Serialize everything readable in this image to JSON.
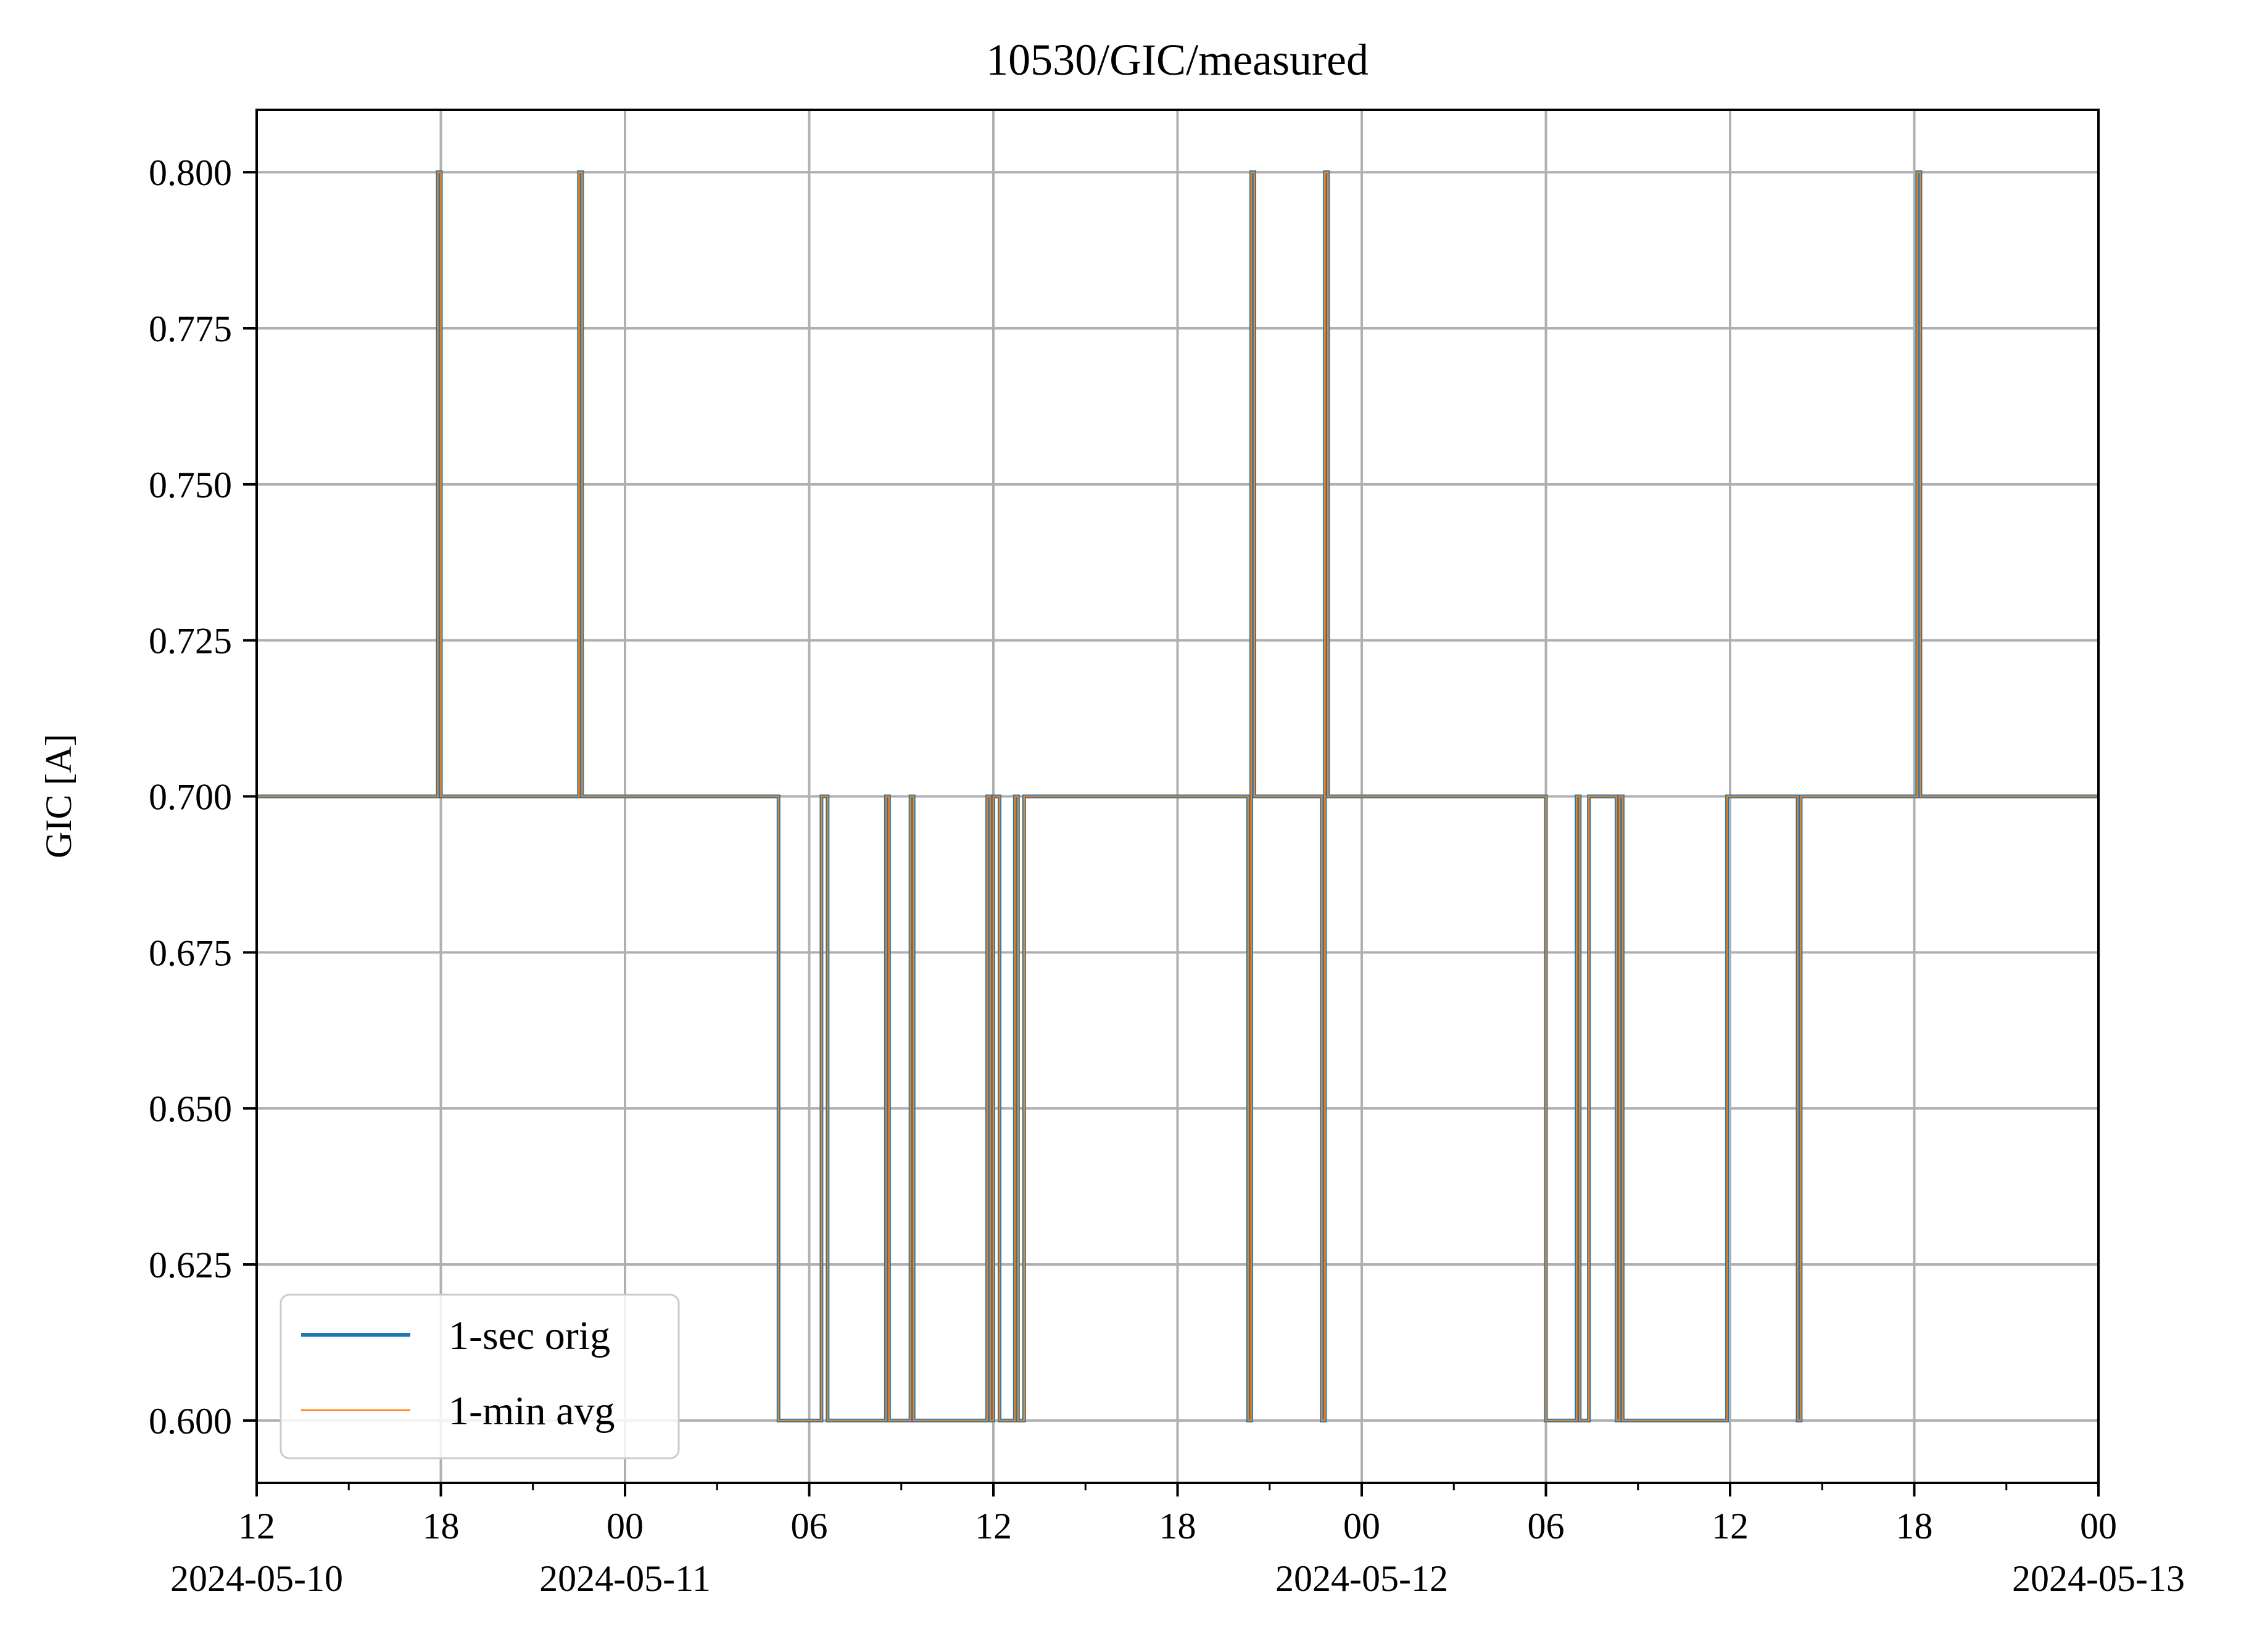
{
  "chart_data": {
    "type": "line",
    "title": "10530/GIC/measured",
    "xlabel": "",
    "ylabel": "GIC [A]",
    "x_axis": {
      "kind": "datetime",
      "range": [
        "2024-05-10 12:00",
        "2024-05-13 00:00"
      ],
      "major_ticks": [
        {
          "time": "2024-05-10 12:00",
          "label": "12",
          "date_label": "2024-05-10"
        },
        {
          "time": "2024-05-10 18:00",
          "label": "18",
          "date_label": ""
        },
        {
          "time": "2024-05-11 00:00",
          "label": "00",
          "date_label": "2024-05-11"
        },
        {
          "time": "2024-05-11 06:00",
          "label": "06",
          "date_label": ""
        },
        {
          "time": "2024-05-11 12:00",
          "label": "12",
          "date_label": ""
        },
        {
          "time": "2024-05-11 18:00",
          "label": "18",
          "date_label": ""
        },
        {
          "time": "2024-05-12 00:00",
          "label": "00",
          "date_label": "2024-05-12"
        },
        {
          "time": "2024-05-12 06:00",
          "label": "06",
          "date_label": ""
        },
        {
          "time": "2024-05-12 12:00",
          "label": "12",
          "date_label": ""
        },
        {
          "time": "2024-05-12 18:00",
          "label": "18",
          "date_label": ""
        },
        {
          "time": "2024-05-13 00:00",
          "label": "00",
          "date_label": "2024-05-13"
        }
      ],
      "minor_tick_hours": 3
    },
    "y_axis": {
      "range": [
        0.59,
        0.81
      ],
      "ticks": [
        0.6,
        0.625,
        0.65,
        0.675,
        0.7,
        0.725,
        0.75,
        0.775,
        0.8
      ],
      "tick_labels": [
        "0.600",
        "0.625",
        "0.650",
        "0.675",
        "0.700",
        "0.725",
        "0.750",
        "0.775",
        "0.800"
      ]
    },
    "grid": true,
    "legend": {
      "position": "lower-left"
    },
    "series": [
      {
        "name": "1-sec orig",
        "color": "#1f77b4",
        "line_width": "thick",
        "step": true,
        "points": [
          [
            "2024-05-10 12:00",
            0.7
          ],
          [
            "2024-05-10 17:54",
            0.8
          ],
          [
            "2024-05-10 18:00",
            0.7
          ],
          [
            "2024-05-10 22:30",
            0.8
          ],
          [
            "2024-05-10 22:36",
            0.7
          ],
          [
            "2024-05-11 05:00",
            0.6
          ],
          [
            "2024-05-11 06:24",
            0.7
          ],
          [
            "2024-05-11 06:36",
            0.6
          ],
          [
            "2024-05-11 08:30",
            0.7
          ],
          [
            "2024-05-11 08:36",
            0.6
          ],
          [
            "2024-05-11 09:18",
            0.7
          ],
          [
            "2024-05-11 09:24",
            0.6
          ],
          [
            "2024-05-11 11:48",
            0.7
          ],
          [
            "2024-05-11 11:54",
            0.6
          ],
          [
            "2024-05-11 12:00",
            0.7
          ],
          [
            "2024-05-11 12:12",
            0.6
          ],
          [
            "2024-05-11 12:42",
            0.7
          ],
          [
            "2024-05-11 12:48",
            0.6
          ],
          [
            "2024-05-11 13:00",
            0.7
          ],
          [
            "2024-05-11 20:18",
            0.6
          ],
          [
            "2024-05-11 20:24",
            0.8
          ],
          [
            "2024-05-11 20:30",
            0.7
          ],
          [
            "2024-05-11 22:42",
            0.6
          ],
          [
            "2024-05-11 22:48",
            0.8
          ],
          [
            "2024-05-11 22:54",
            0.7
          ],
          [
            "2024-05-12 06:00",
            0.6
          ],
          [
            "2024-05-12 07:00",
            0.7
          ],
          [
            "2024-05-12 07:06",
            0.6
          ],
          [
            "2024-05-12 07:24",
            0.7
          ],
          [
            "2024-05-12 08:18",
            0.6
          ],
          [
            "2024-05-12 08:24",
            0.7
          ],
          [
            "2024-05-12 08:30",
            0.6
          ],
          [
            "2024-05-12 11:54",
            0.7
          ],
          [
            "2024-05-12 14:12",
            0.6
          ],
          [
            "2024-05-12 14:18",
            0.7
          ],
          [
            "2024-05-12 18:06",
            0.8
          ],
          [
            "2024-05-12 18:12",
            0.7
          ],
          [
            "2024-05-13 00:00",
            0.7
          ]
        ]
      },
      {
        "name": "1-min avg",
        "color": "#ff7f0e",
        "line_width": "thin",
        "step": true,
        "points": [
          [
            "2024-05-10 12:00",
            0.7
          ],
          [
            "2024-05-10 17:54",
            0.8
          ],
          [
            "2024-05-10 18:00",
            0.7
          ],
          [
            "2024-05-10 22:30",
            0.8
          ],
          [
            "2024-05-10 22:36",
            0.7
          ],
          [
            "2024-05-11 05:00",
            0.6
          ],
          [
            "2024-05-11 06:24",
            0.7
          ],
          [
            "2024-05-11 06:36",
            0.6
          ],
          [
            "2024-05-11 08:30",
            0.7
          ],
          [
            "2024-05-11 08:36",
            0.6
          ],
          [
            "2024-05-11 09:18",
            0.7
          ],
          [
            "2024-05-11 09:24",
            0.6
          ],
          [
            "2024-05-11 11:48",
            0.7
          ],
          [
            "2024-05-11 11:54",
            0.6
          ],
          [
            "2024-05-11 12:00",
            0.7
          ],
          [
            "2024-05-11 12:12",
            0.6
          ],
          [
            "2024-05-11 12:42",
            0.7
          ],
          [
            "2024-05-11 12:48",
            0.6
          ],
          [
            "2024-05-11 13:00",
            0.7
          ],
          [
            "2024-05-11 20:18",
            0.6
          ],
          [
            "2024-05-11 20:24",
            0.8
          ],
          [
            "2024-05-11 20:30",
            0.7
          ],
          [
            "2024-05-11 22:42",
            0.6
          ],
          [
            "2024-05-11 22:48",
            0.8
          ],
          [
            "2024-05-11 22:54",
            0.7
          ],
          [
            "2024-05-12 06:00",
            0.6
          ],
          [
            "2024-05-12 07:00",
            0.7
          ],
          [
            "2024-05-12 07:06",
            0.6
          ],
          [
            "2024-05-12 07:24",
            0.7
          ],
          [
            "2024-05-12 08:18",
            0.6
          ],
          [
            "2024-05-12 08:24",
            0.7
          ],
          [
            "2024-05-12 08:30",
            0.6
          ],
          [
            "2024-05-12 11:54",
            0.7
          ],
          [
            "2024-05-12 14:12",
            0.6
          ],
          [
            "2024-05-12 14:18",
            0.7
          ],
          [
            "2024-05-12 18:06",
            0.8
          ],
          [
            "2024-05-12 18:12",
            0.7
          ],
          [
            "2024-05-13 00:00",
            0.7
          ]
        ]
      }
    ]
  }
}
